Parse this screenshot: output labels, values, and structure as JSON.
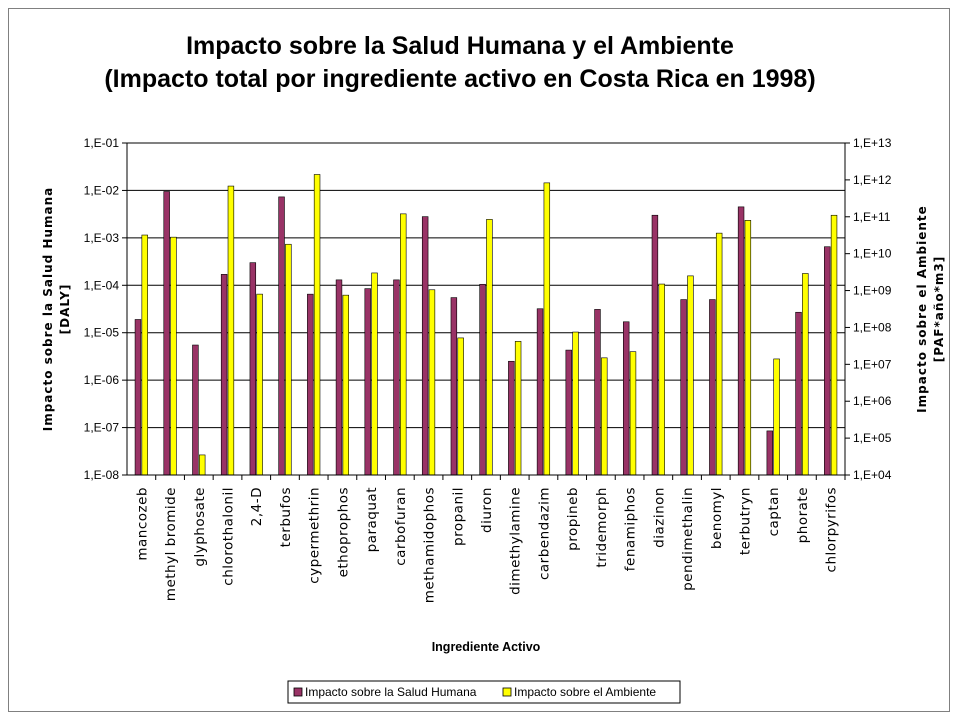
{
  "chart_data": {
    "type": "bar",
    "title": [
      "Impacto sobre la Salud Humana y el Ambiente",
      "(Impacto total por ingrediente activo en Costa Rica en 1998)"
    ],
    "xlabel": "Ingrediente Activo",
    "ylabel_left": [
      "Impacto sobre la Salud Humana",
      "[DALY]"
    ],
    "ylabel_right": [
      "Impacto sobre el Ambiente",
      "[PAF*año*m3]"
    ],
    "y_scale": "log",
    "ylim_left": [
      1e-08,
      0.1
    ],
    "ylim_right": [
      10000,
      10000000000000
    ],
    "yticks_left": [
      "1,E-08",
      "1,E-07",
      "1,E-06",
      "1,E-05",
      "1,E-04",
      "1,E-03",
      "1,E-02",
      "1,E-01"
    ],
    "yticks_right": [
      "1,E+04",
      "1,E+05",
      "1,E+06",
      "1,E+07",
      "1,E+08",
      "1,E+09",
      "1,E+10",
      "1,E+11",
      "1,E+12",
      "1,E+13"
    ],
    "grid": true,
    "legend_position": "bottom",
    "colors": {
      "salud": "#993366",
      "ambiente": "#FFFF00",
      "grid": "#000000"
    },
    "categories": [
      "mancozeb",
      "methyl bromide",
      "glyphosate",
      "chlorothalonil",
      "2,4-D",
      "terbufos",
      "cypermethrin",
      "ethoprophos",
      "paraquat",
      "carbofuran",
      "methamidophos",
      "propanil",
      "diuron",
      "dimethylamine",
      "carbendazim",
      "propineb",
      "tridemorph",
      "fenamiphos",
      "diazinon",
      "pendimethalin",
      "benomyl",
      "terbutryn",
      "captan",
      "phorate",
      "chlorpyrifos"
    ],
    "series": [
      {
        "name": "Impacto sobre la Salud Humana",
        "axis": "left",
        "values": [
          1.9e-05,
          0.0095,
          5.5e-06,
          0.00017,
          0.0003,
          0.0073,
          6.5e-05,
          0.00013,
          8.5e-05,
          0.00013,
          0.0028,
          5.5e-05,
          0.000105,
          2.5e-06,
          3.2e-05,
          4.3e-06,
          3.1e-05,
          1.7e-05,
          0.003,
          5e-05,
          5e-05,
          0.0045,
          8.5e-08,
          2.7e-05,
          0.00065
        ]
      },
      {
        "name": "Impacto sobre el Ambiente",
        "axis": "right",
        "values": [
          32000000000,
          28000000000,
          35000,
          680000000000,
          800000000,
          18000000000,
          1400000000000,
          750000000,
          3000000000,
          120000000000,
          1050000000,
          52000000,
          85000000000,
          42000000,
          830000000000,
          75000000,
          15000000,
          22000000,
          1500000000,
          2500000000,
          36000000000,
          80000000000,
          14000000,
          2900000000,
          110000000000
        ]
      }
    ]
  }
}
